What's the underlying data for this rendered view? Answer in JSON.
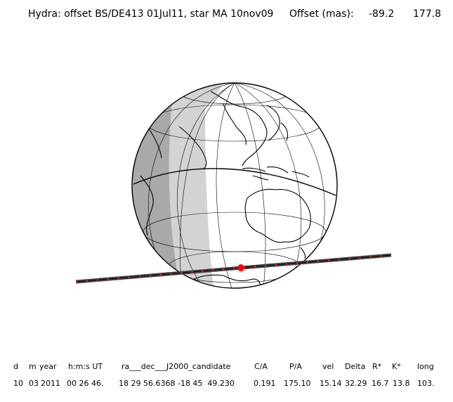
{
  "header": {
    "label": "Hydra: offset BS/DE413 01Jul11, star MA 10nov09",
    "offset_label": "Offset (mas):",
    "offset_x": "-89.2",
    "offset_y": "177.8"
  },
  "map": {
    "projection": "orthographic",
    "globe_colors": {
      "day": "#ffffff",
      "twilight": "#d3d3d3",
      "night": "#a9a9a9"
    },
    "path_color": "#444444",
    "path_tick_color": "#ff2020",
    "event_marker_color": "#ff0000"
  },
  "footer": {
    "columns": [
      "d",
      "m",
      "year",
      "h:m:s UT",
      "ra___dec___J2000_candidate",
      "C/A",
      "P/A",
      "vel",
      "Delta",
      "R*",
      "K*",
      "long"
    ],
    "values": [
      "10",
      "03",
      "2011",
      "00 26 46.",
      "18 29 56.6368 -18 45  49.230",
      "0.191",
      "175.10",
      "15.14",
      "32.29",
      "16.7",
      "13.8",
      "103."
    ]
  }
}
